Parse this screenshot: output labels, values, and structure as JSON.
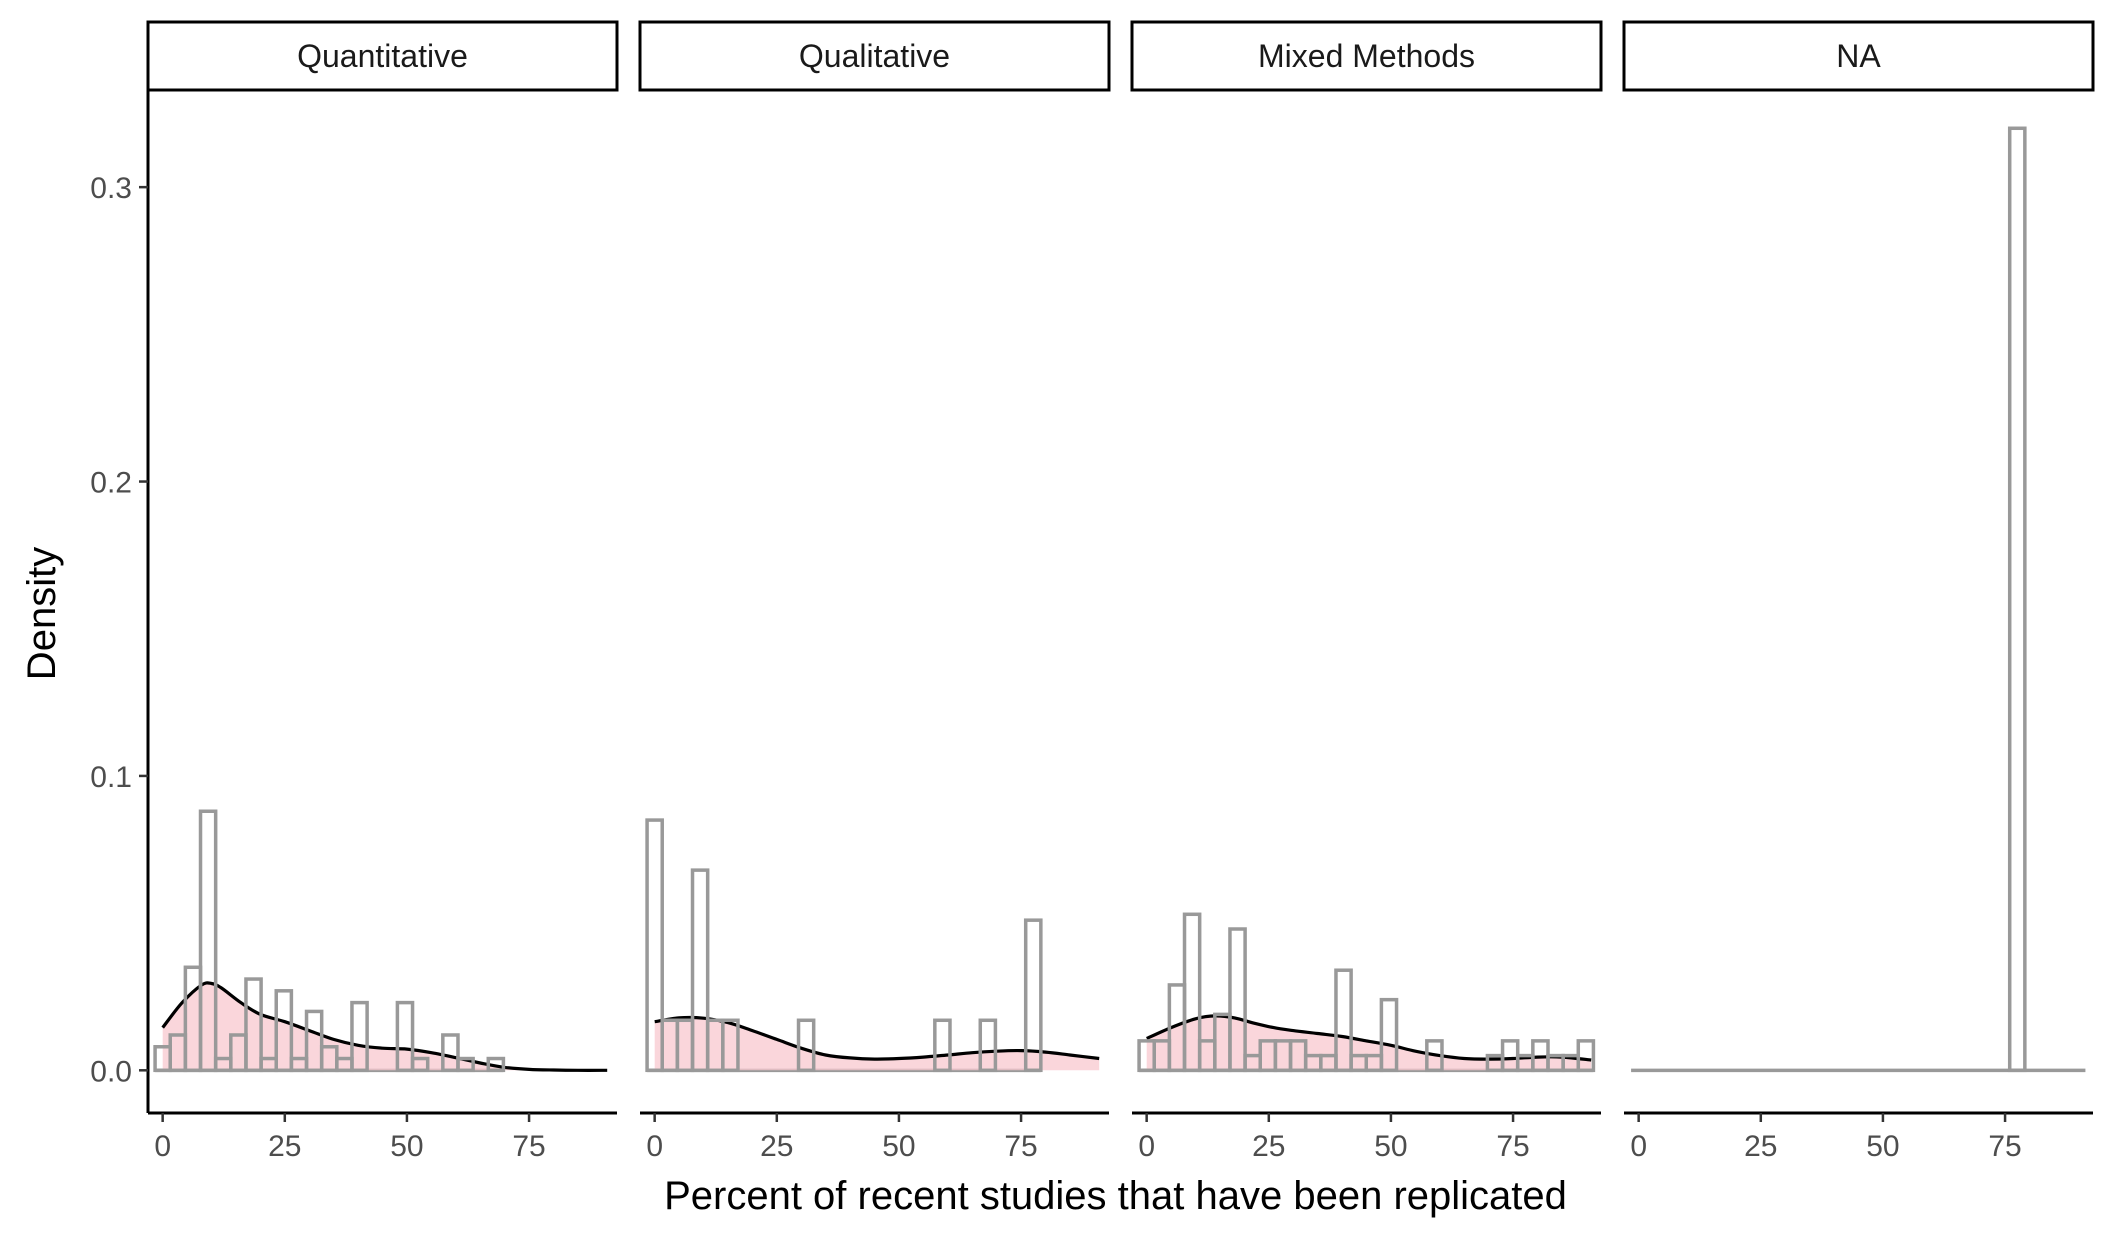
{
  "chart_data": {
    "type": "histogram",
    "facet_layout": "1x4",
    "xlabel": "Percent of recent studies that have been replicated",
    "ylabel": "Density",
    "xlim": [
      -3,
      93
    ],
    "ylim": [
      -0.0145,
      0.333
    ],
    "x_ticks": [
      0,
      25,
      50,
      75
    ],
    "y_ticks": [
      0.0,
      0.1,
      0.2,
      0.3
    ],
    "y_tick_labels": [
      "0.0",
      "0.1",
      "0.2",
      "0.3"
    ],
    "x_tick_labels": [
      "0",
      "25",
      "50",
      "75"
    ],
    "bin_width": 3.1,
    "grid": false,
    "colors": {
      "bar_outline": "#999999",
      "density_fill": "#f8c8cf",
      "density_line": "#000000"
    },
    "facets": [
      {
        "name": "Quantitative",
        "bins": [
          {
            "x": 0,
            "y": 0.008
          },
          {
            "x": 3.1,
            "y": 0.012
          },
          {
            "x": 6.2,
            "y": 0.035
          },
          {
            "x": 9.3,
            "y": 0.088
          },
          {
            "x": 12.4,
            "y": 0.004
          },
          {
            "x": 15.5,
            "y": 0.012
          },
          {
            "x": 18.6,
            "y": 0.031
          },
          {
            "x": 21.7,
            "y": 0.004
          },
          {
            "x": 24.8,
            "y": 0.027
          },
          {
            "x": 27.9,
            "y": 0.004
          },
          {
            "x": 31.0,
            "y": 0.02
          },
          {
            "x": 34.1,
            "y": 0.008
          },
          {
            "x": 37.2,
            "y": 0.004
          },
          {
            "x": 40.3,
            "y": 0.023
          },
          {
            "x": 43.4,
            "y": 0.0
          },
          {
            "x": 46.5,
            "y": 0.0
          },
          {
            "x": 49.6,
            "y": 0.023
          },
          {
            "x": 52.7,
            "y": 0.004
          },
          {
            "x": 55.8,
            "y": 0.0
          },
          {
            "x": 58.9,
            "y": 0.012
          },
          {
            "x": 62.0,
            "y": 0.004
          },
          {
            "x": 65.1,
            "y": 0.0
          },
          {
            "x": 68.2,
            "y": 0.004
          }
        ],
        "density": {
          "x": [
            0,
            4,
            8,
            10,
            12,
            16,
            20,
            25,
            30,
            35,
            40,
            45,
            50,
            55,
            60,
            65,
            70,
            75,
            80,
            85,
            91
          ],
          "y": [
            0.0145,
            0.023,
            0.029,
            0.0295,
            0.028,
            0.023,
            0.019,
            0.0165,
            0.0135,
            0.0105,
            0.0085,
            0.0075,
            0.0072,
            0.006,
            0.0043,
            0.0025,
            0.001,
            0.0003,
            0.0001,
            0.0,
            0.0
          ]
        }
      },
      {
        "name": "Qualitative",
        "bins": [
          {
            "x": 0,
            "y": 0.085
          },
          {
            "x": 3.1,
            "y": 0.017
          },
          {
            "x": 6.2,
            "y": 0.017
          },
          {
            "x": 9.3,
            "y": 0.068
          },
          {
            "x": 12.4,
            "y": 0.017
          },
          {
            "x": 15.5,
            "y": 0.017
          },
          {
            "x": 31.0,
            "y": 0.017
          },
          {
            "x": 58.9,
            "y": 0.017
          },
          {
            "x": 68.2,
            "y": 0.017
          },
          {
            "x": 77.5,
            "y": 0.051
          }
        ],
        "density": {
          "x": [
            0,
            5,
            10,
            15,
            20,
            25,
            30,
            35,
            40,
            45,
            50,
            55,
            60,
            65,
            70,
            75,
            80,
            85,
            91
          ],
          "y": [
            0.0165,
            0.0178,
            0.0177,
            0.0162,
            0.0135,
            0.0105,
            0.0075,
            0.0052,
            0.0042,
            0.0038,
            0.004,
            0.0045,
            0.0052,
            0.006,
            0.0065,
            0.0067,
            0.0062,
            0.0052,
            0.004
          ]
        }
      },
      {
        "name": "Mixed Methods",
        "bins": [
          {
            "x": 0,
            "y": 0.01
          },
          {
            "x": 3.1,
            "y": 0.01
          },
          {
            "x": 6.2,
            "y": 0.029
          },
          {
            "x": 9.3,
            "y": 0.053
          },
          {
            "x": 12.4,
            "y": 0.01
          },
          {
            "x": 15.5,
            "y": 0.019
          },
          {
            "x": 18.6,
            "y": 0.048
          },
          {
            "x": 21.7,
            "y": 0.005
          },
          {
            "x": 24.8,
            "y": 0.01
          },
          {
            "x": 27.9,
            "y": 0.01
          },
          {
            "x": 31.0,
            "y": 0.01
          },
          {
            "x": 34.1,
            "y": 0.005
          },
          {
            "x": 37.2,
            "y": 0.005
          },
          {
            "x": 40.3,
            "y": 0.034
          },
          {
            "x": 43.4,
            "y": 0.005
          },
          {
            "x": 46.5,
            "y": 0.005
          },
          {
            "x": 49.6,
            "y": 0.024
          },
          {
            "x": 58.9,
            "y": 0.01
          },
          {
            "x": 71.3,
            "y": 0.005
          },
          {
            "x": 74.4,
            "y": 0.01
          },
          {
            "x": 77.5,
            "y": 0.005
          },
          {
            "x": 80.6,
            "y": 0.01
          },
          {
            "x": 83.7,
            "y": 0.005
          },
          {
            "x": 86.8,
            "y": 0.005
          },
          {
            "x": 89.9,
            "y": 0.01
          }
        ],
        "density": {
          "x": [
            0,
            5,
            10,
            14,
            18,
            22,
            26,
            30,
            35,
            40,
            45,
            50,
            55,
            60,
            65,
            70,
            75,
            80,
            85,
            91
          ],
          "y": [
            0.0108,
            0.0145,
            0.0175,
            0.0185,
            0.0178,
            0.016,
            0.0145,
            0.0135,
            0.0125,
            0.0115,
            0.01,
            0.0085,
            0.0065,
            0.005,
            0.004,
            0.0038,
            0.004,
            0.0045,
            0.0045,
            0.0035
          ]
        }
      },
      {
        "name": "NA",
        "bins": [
          {
            "x": 0,
            "y": 0.0
          },
          {
            "x": 3.1,
            "y": 0.0
          },
          {
            "x": 77.5,
            "y": 0.32
          },
          {
            "x": 89.9,
            "y": 0.0
          }
        ],
        "density": null
      }
    ]
  }
}
